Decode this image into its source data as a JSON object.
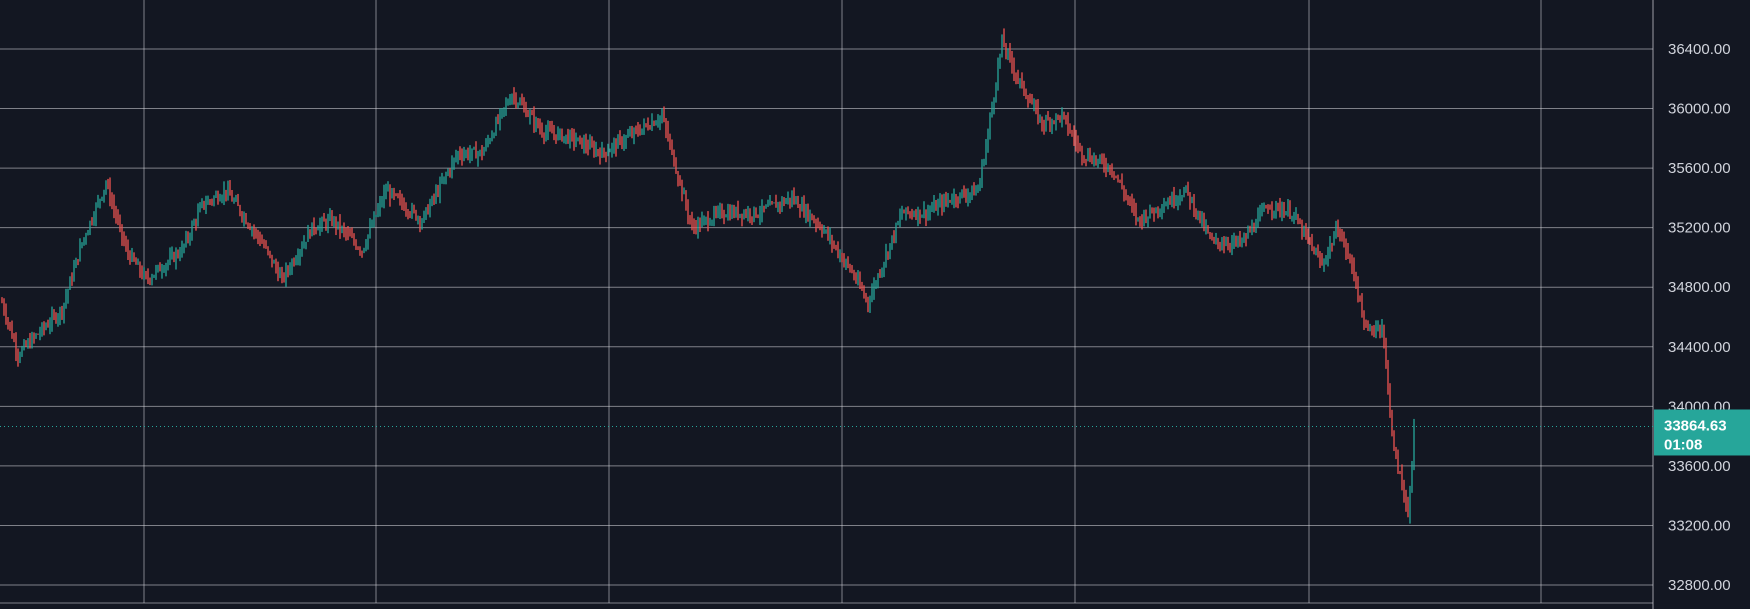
{
  "chart_data": {
    "type": "candlestick",
    "grid": true,
    "ylim": [
      32700,
      36800
    ],
    "y_ticks": [
      "32800.00",
      "33200.00",
      "33600.00",
      "34000.00",
      "34400.00",
      "34800.00",
      "35200.00",
      "35600.00",
      "36000.00",
      "36400.00"
    ],
    "y_tick_values": [
      32800,
      33200,
      33600,
      34000,
      34400,
      34800,
      35200,
      35600,
      36000,
      36400
    ],
    "colors": {
      "background": "#131722",
      "grid": "#d9d9de",
      "up": "#26a69a",
      "down": "#ef5350",
      "axis_text": "#d1d4dc",
      "badge": "#26a69a"
    },
    "trend_waypoints": [
      [
        0,
        34700
      ],
      [
        8,
        34350
      ],
      [
        30,
        34650
      ],
      [
        40,
        35100
      ],
      [
        52,
        35500
      ],
      [
        62,
        35050
      ],
      [
        72,
        34850
      ],
      [
        90,
        35050
      ],
      [
        100,
        35350
      ],
      [
        112,
        35450
      ],
      [
        130,
        35100
      ],
      [
        140,
        34850
      ],
      [
        155,
        35200
      ],
      [
        165,
        35250
      ],
      [
        180,
        35050
      ],
      [
        192,
        35450
      ],
      [
        210,
        35250
      ],
      [
        228,
        35700
      ],
      [
        240,
        35700
      ],
      [
        255,
        36100
      ],
      [
        270,
        35850
      ],
      [
        285,
        35800
      ],
      [
        300,
        35700
      ],
      [
        318,
        35850
      ],
      [
        330,
        35950
      ],
      [
        345,
        35200
      ],
      [
        360,
        35300
      ],
      [
        378,
        35300
      ],
      [
        395,
        35400
      ],
      [
        410,
        35200
      ],
      [
        425,
        34900
      ],
      [
        433,
        34700
      ],
      [
        450,
        35300
      ],
      [
        462,
        35300
      ],
      [
        475,
        35400
      ],
      [
        488,
        35450
      ],
      [
        492,
        35750
      ],
      [
        500,
        36450
      ],
      [
        508,
        36200
      ],
      [
        520,
        35900
      ],
      [
        530,
        35950
      ],
      [
        540,
        35700
      ],
      [
        555,
        35600
      ],
      [
        568,
        35250
      ],
      [
        580,
        35350
      ],
      [
        592,
        35450
      ],
      [
        605,
        35100
      ],
      [
        620,
        35100
      ],
      [
        633,
        35350
      ],
      [
        645,
        35300
      ],
      [
        660,
        34950
      ],
      [
        668,
        35200
      ],
      [
        676,
        34900
      ],
      [
        682,
        34500
      ],
      [
        690,
        34550
      ],
      [
        696,
        33700
      ],
      [
        703,
        33300
      ],
      [
        706,
        33700
      ]
    ],
    "last_price": 33864.63,
    "last_price_label": "33864.63",
    "countdown_label": "01:08"
  }
}
